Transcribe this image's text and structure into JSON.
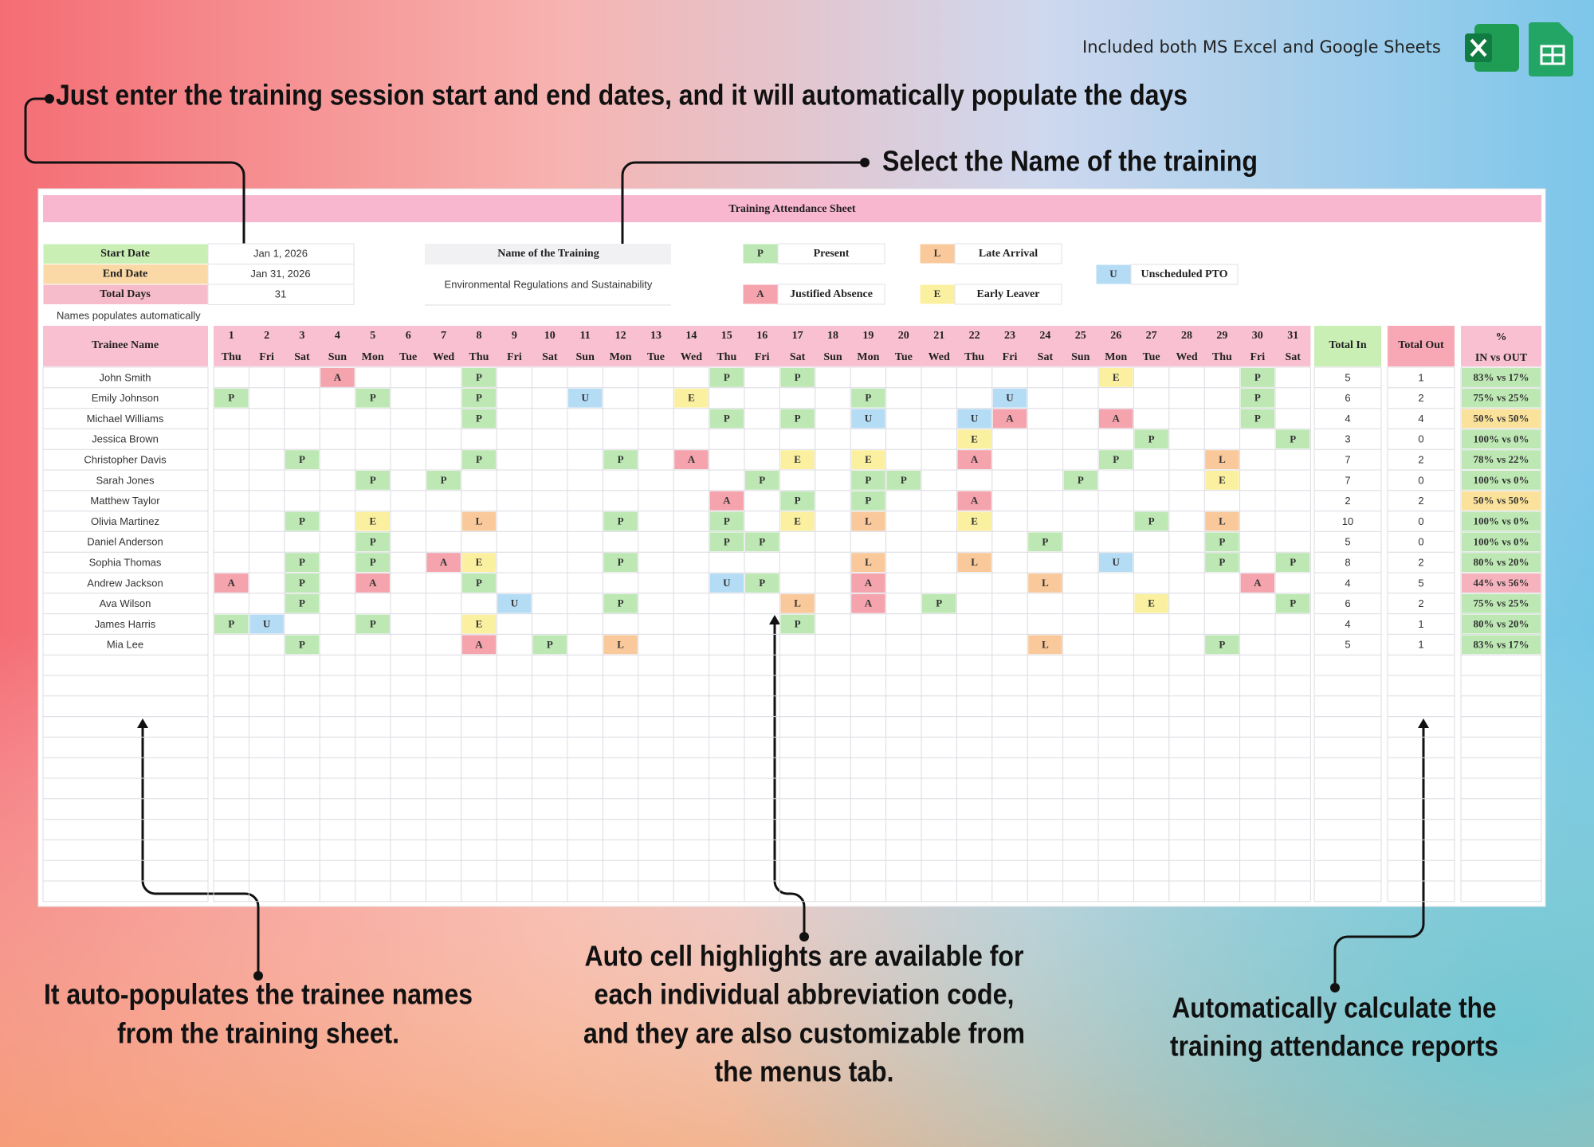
{
  "header": {
    "note": "Included both MS Excel and Google Sheets"
  },
  "callouts": {
    "dates": "Just enter the training session start and end dates, and it will automatically populate the days",
    "training": "Select the Name of the training",
    "names": [
      "It auto-populates the trainee names",
      "from the training sheet."
    ],
    "highlights": [
      "Auto cell highlights are available for",
      "each individual abbreviation code,",
      "and they are also customizable from",
      "the menus tab."
    ],
    "reports": [
      "Automatically calculate the",
      "training attendance reports"
    ]
  },
  "sheet": {
    "title": "Training Attendance Sheet",
    "info": [
      {
        "label": "Start Date",
        "value": "Jan 1, 2026",
        "color": "#c9efb4"
      },
      {
        "label": "End Date",
        "value": "Jan 31, 2026",
        "color": "#fbd9a6"
      },
      {
        "label": "Total Days",
        "value": "31",
        "color": "#f7bccb"
      }
    ],
    "training": {
      "label": "Name of the Training",
      "value": "Environmental Regulations and Sustainability"
    },
    "legend": [
      {
        "code": "P",
        "label": "Present",
        "color": "#bde8b4"
      },
      {
        "code": "A",
        "label": "Justified Absence",
        "color": "#f5a3ad"
      },
      {
        "code": "L",
        "label": "Late Arrival",
        "color": "#f9c99b"
      },
      {
        "code": "E",
        "label": "Early Leaver",
        "color": "#fbf0a0"
      },
      {
        "code": "U",
        "label": "Unscheduled PTO",
        "color": "#b5dcf5"
      }
    ],
    "names_note": "Names populates automatically",
    "columns": {
      "name": "Trainee Name",
      "days": [
        1,
        2,
        3,
        4,
        5,
        6,
        7,
        8,
        9,
        10,
        11,
        12,
        13,
        14,
        15,
        16,
        17,
        18,
        19,
        20,
        21,
        22,
        23,
        24,
        25,
        26,
        27,
        28,
        29,
        30,
        31
      ],
      "weekdays": [
        "Thu",
        "Fri",
        "Sat",
        "Sun",
        "Mon",
        "Tue",
        "Wed",
        "Thu",
        "Fri",
        "Sat",
        "Sun",
        "Mon",
        "Tue",
        "Wed",
        "Thu",
        "Fri",
        "Sat",
        "Sun",
        "Mon",
        "Tue",
        "Wed",
        "Thu",
        "Fri",
        "Sat",
        "Sun",
        "Mon",
        "Tue",
        "Wed",
        "Thu",
        "Fri",
        "Sat"
      ],
      "total_in": "Total In",
      "total_out": "Total Out",
      "pct": "%",
      "pct_sub": "IN vs OUT"
    },
    "rows": [
      {
        "name": "John Smith",
        "marks": {
          "4": "A",
          "8": "P",
          "15": "P",
          "17": "P",
          "26": "E",
          "30": "P"
        },
        "total_in": 5,
        "total_out": 1,
        "pct": "83% vs 17%",
        "pct_color": "#bde8b4"
      },
      {
        "name": "Emily Johnson",
        "marks": {
          "1": "P",
          "5": "P",
          "8": "P",
          "11": "U",
          "14": "E",
          "19": "P",
          "23": "U",
          "30": "P"
        },
        "total_in": 6,
        "total_out": 2,
        "pct": "75% vs 25%",
        "pct_color": "#bde8b4"
      },
      {
        "name": "Michael Williams",
        "marks": {
          "8": "P",
          "15": "P",
          "17": "P",
          "19": "U",
          "22": "U",
          "23": "A",
          "26": "A",
          "30": "P"
        },
        "total_in": 4,
        "total_out": 4,
        "pct": "50% vs 50%",
        "pct_color": "#fbe29a"
      },
      {
        "name": "Jessica Brown",
        "marks": {
          "22": "E",
          "27": "P",
          "31": "P"
        },
        "total_in": 3,
        "total_out": 0,
        "pct": "100% vs 0%",
        "pct_color": "#bde8b4"
      },
      {
        "name": "Christopher Davis",
        "marks": {
          "3": "P",
          "8": "P",
          "12": "P",
          "14": "A",
          "17": "E",
          "19": "E",
          "22": "A",
          "26": "P",
          "29": "L"
        },
        "total_in": 7,
        "total_out": 2,
        "pct": "78% vs 22%",
        "pct_color": "#bde8b4"
      },
      {
        "name": "Sarah Jones",
        "marks": {
          "5": "P",
          "7": "P",
          "16": "P",
          "19": "P",
          "20": "P",
          "25": "P",
          "29": "E"
        },
        "total_in": 7,
        "total_out": 0,
        "pct": "100% vs 0%",
        "pct_color": "#bde8b4"
      },
      {
        "name": "Matthew Taylor",
        "marks": {
          "15": "A",
          "17": "P",
          "19": "P",
          "22": "A"
        },
        "total_in": 2,
        "total_out": 2,
        "pct": "50% vs 50%",
        "pct_color": "#fbe29a"
      },
      {
        "name": "Olivia Martinez",
        "marks": {
          "3": "P",
          "5": "E",
          "8": "L",
          "12": "P",
          "15": "P",
          "17": "E",
          "19": "L",
          "22": "E",
          "27": "P",
          "29": "L"
        },
        "total_in": 10,
        "total_out": 0,
        "pct": "100% vs 0%",
        "pct_color": "#bde8b4"
      },
      {
        "name": "Daniel Anderson",
        "marks": {
          "5": "P",
          "15": "P",
          "16": "P",
          "24": "P",
          "29": "P"
        },
        "total_in": 5,
        "total_out": 0,
        "pct": "100% vs 0%",
        "pct_color": "#bde8b4"
      },
      {
        "name": "Sophia Thomas",
        "marks": {
          "3": "P",
          "5": "P",
          "7": "A",
          "8": "E",
          "12": "P",
          "19": "L",
          "22": "L",
          "26": "U",
          "29": "P",
          "31": "P"
        },
        "total_in": 8,
        "total_out": 2,
        "pct": "80% vs 20%",
        "pct_color": "#bde8b4"
      },
      {
        "name": "Andrew Jackson",
        "marks": {
          "1": "A",
          "3": "P",
          "5": "A",
          "8": "P",
          "15": "U",
          "16": "P",
          "19": "A",
          "24": "L",
          "30": "A"
        },
        "total_in": 4,
        "total_out": 5,
        "pct": "44% vs 56%",
        "pct_color": "#f7b3bd"
      },
      {
        "name": "Ava Wilson",
        "marks": {
          "3": "P",
          "9": "U",
          "12": "P",
          "17": "L",
          "19": "A",
          "21": "P",
          "27": "E",
          "31": "P"
        },
        "total_in": 6,
        "total_out": 2,
        "pct": "75% vs 25%",
        "pct_color": "#bde8b4"
      },
      {
        "name": "James Harris",
        "marks": {
          "1": "P",
          "2": "U",
          "5": "P",
          "8": "E",
          "17": "P"
        },
        "total_in": 4,
        "total_out": 1,
        "pct": "80% vs 20%",
        "pct_color": "#bde8b4"
      },
      {
        "name": "Mia Lee",
        "marks": {
          "3": "P",
          "8": "A",
          "10": "P",
          "12": "L",
          "24": "L",
          "29": "P"
        },
        "total_in": 5,
        "total_out": 1,
        "pct": "83% vs 17%",
        "pct_color": "#bde8b4"
      }
    ]
  }
}
